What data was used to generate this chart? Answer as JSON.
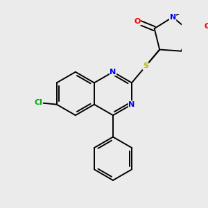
{
  "background_color": "#ebebeb",
  "bond_color": "#000000",
  "atom_colors": {
    "N": "#0000ee",
    "O": "#ee0000",
    "S": "#bbbb00",
    "Cl": "#00aa00",
    "C": "#000000"
  },
  "bond_lw": 1.4,
  "font_size": 8,
  "figsize": [
    3.0,
    3.0
  ],
  "dpi": 100
}
